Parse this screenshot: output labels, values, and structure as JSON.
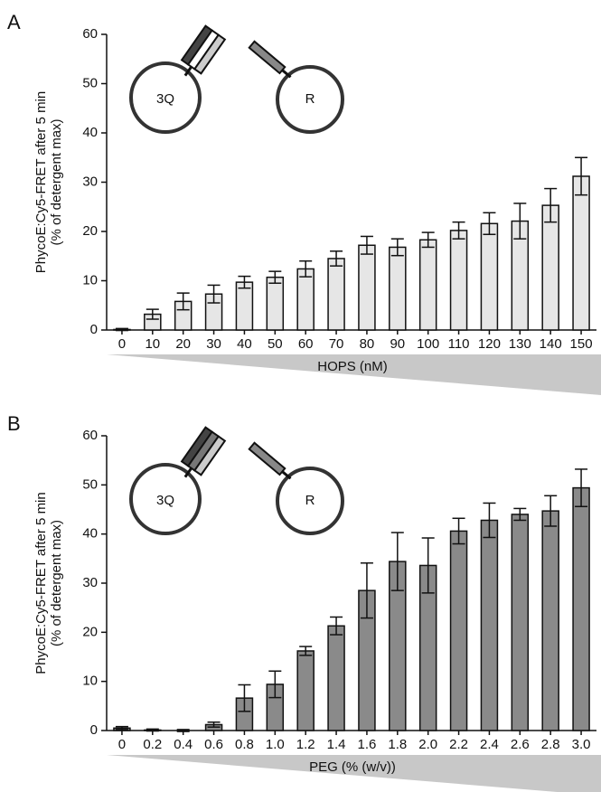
{
  "chart_data": [
    {
      "type": "bar",
      "panel": "A",
      "ylabel": [
        "PhycoE:Cy5-FRET after 5 min",
        "(% of detergent max)"
      ],
      "xlabel": "HOPS (nM)",
      "inset_labels": [
        "3Q",
        "R"
      ],
      "categories": [
        "0",
        "10",
        "20",
        "30",
        "40",
        "50",
        "60",
        "70",
        "80",
        "90",
        "100",
        "110",
        "120",
        "130",
        "140",
        "150"
      ],
      "values": [
        0.1,
        3.2,
        5.8,
        7.3,
        9.7,
        10.7,
        12.4,
        14.5,
        17.2,
        16.8,
        18.3,
        20.2,
        21.6,
        22.1,
        25.3,
        31.2
      ],
      "errors": [
        0.2,
        1.0,
        1.7,
        1.8,
        1.2,
        1.2,
        1.6,
        1.5,
        1.8,
        1.7,
        1.5,
        1.7,
        2.2,
        3.6,
        3.4,
        3.8
      ],
      "color": "#e6e6e6",
      "ylim": [
        0,
        60
      ],
      "yticks": [
        0,
        10,
        20,
        30,
        40,
        50,
        60
      ]
    },
    {
      "type": "bar",
      "panel": "B",
      "ylabel": [
        "PhycoE:Cy5-FRET after 5 min",
        "(% of detergent max)"
      ],
      "xlabel": "PEG (% (w/v))",
      "inset_labels": [
        "3Q",
        "R"
      ],
      "categories": [
        "0",
        "0.2",
        "0.4",
        "0.6",
        "0.8",
        "1.0",
        "1.2",
        "1.4",
        "1.6",
        "1.8",
        "2.0",
        "2.2",
        "2.4",
        "2.6",
        "2.8",
        "3.0"
      ],
      "values": [
        0.5,
        0.1,
        0.0,
        1.2,
        6.6,
        9.4,
        16.2,
        21.3,
        28.5,
        34.4,
        33.6,
        40.6,
        42.8,
        44.0,
        44.7,
        49.4
      ],
      "errors": [
        0.3,
        0.2,
        0.2,
        0.5,
        2.7,
        2.7,
        0.9,
        1.8,
        5.6,
        5.9,
        5.6,
        2.6,
        3.5,
        1.2,
        3.1,
        3.8
      ],
      "color": "#8a8a8a",
      "ylim": [
        0,
        60
      ],
      "yticks": [
        0,
        10,
        20,
        30,
        40,
        50,
        60
      ]
    }
  ]
}
